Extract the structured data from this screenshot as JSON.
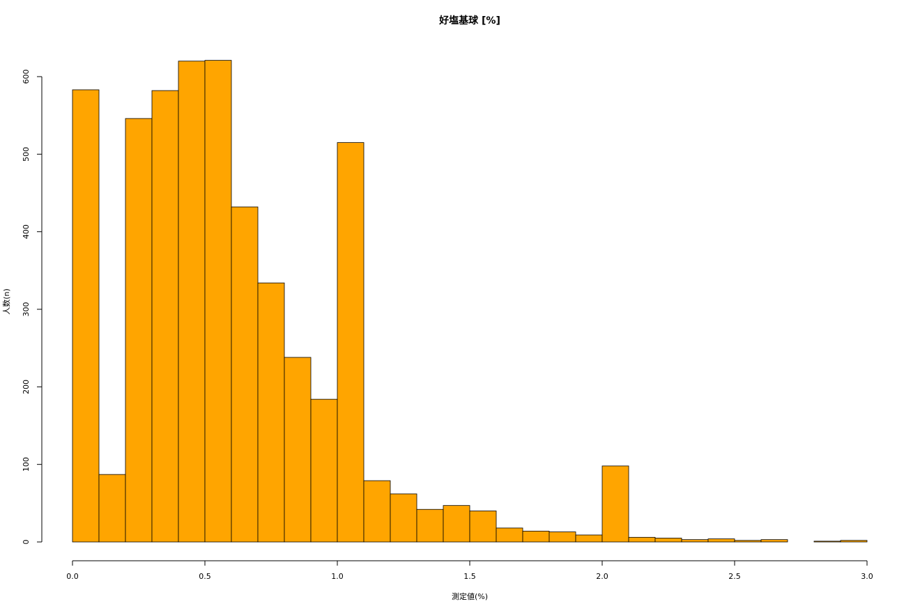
{
  "chart_data": {
    "type": "histogram",
    "title": "好塩基球 [%]",
    "x_label": "測定値(%)",
    "y_label": "人数(n)",
    "bins": [
      0,
      0.1,
      0.2,
      0.3,
      0.4,
      0.5,
      0.6,
      0.7,
      0.8,
      0.9,
      1.0,
      1.1,
      1.2,
      1.3,
      1.4,
      1.5,
      1.6,
      1.7,
      1.8,
      1.9,
      2.0,
      2.1,
      2.2,
      2.3,
      2.4,
      2.5,
      2.6,
      2.7,
      2.8,
      2.9,
      3.0
    ],
    "counts": [
      583,
      87,
      546,
      582,
      620,
      621,
      432,
      334,
      238,
      184,
      515,
      79,
      62,
      42,
      47,
      40,
      18,
      14,
      13,
      9,
      98,
      6,
      5,
      3,
      4,
      2,
      3,
      0,
      1,
      2
    ],
    "color": "#ffa500",
    "edge_color": "#000000",
    "xlim": [
      0,
      3
    ],
    "xticks": [
      {
        "value": 0,
        "label": "0.0"
      },
      0.5,
      {
        "value": 1,
        "label": "1.0"
      },
      1.5,
      {
        "value": 2,
        "label": "2.0"
      },
      2.5,
      {
        "value": 3,
        "label": "3.0"
      }
    ],
    "ylim": [
      0,
      600
    ],
    "yticks": [
      0,
      100,
      200,
      300,
      400,
      500,
      600
    ]
  }
}
